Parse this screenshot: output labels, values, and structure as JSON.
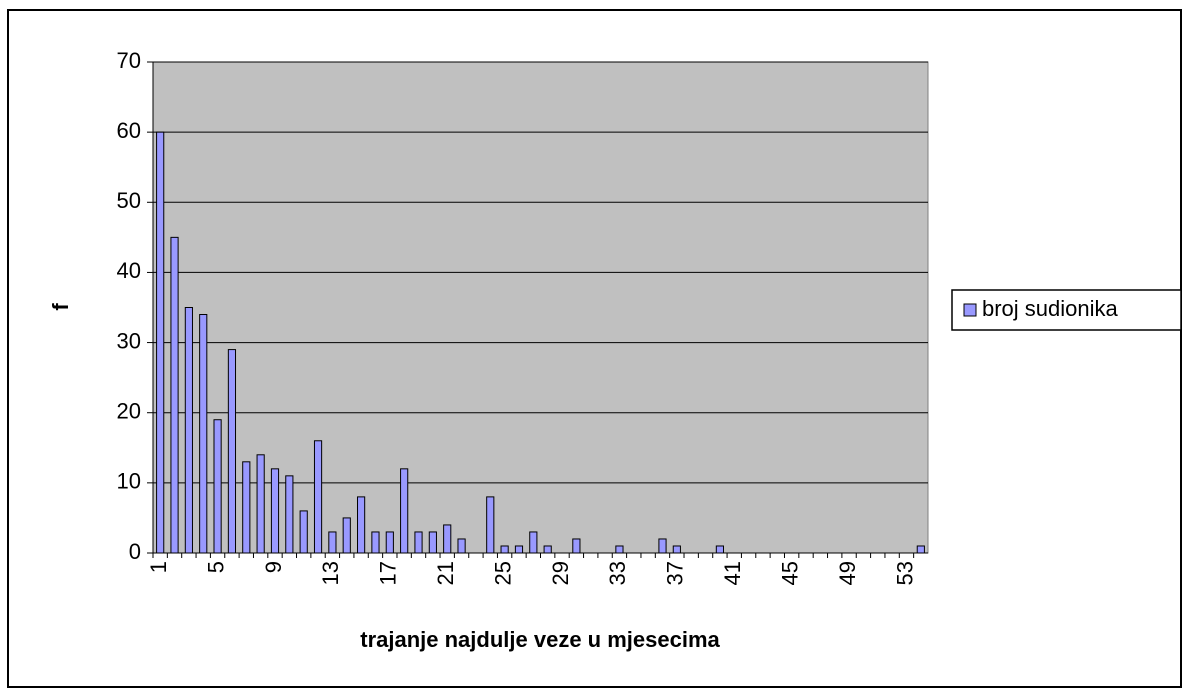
{
  "chart_data": {
    "type": "bar",
    "x_label": "trajanje najdulje veze u mjesecima",
    "y_label": "f",
    "categories": [
      1,
      null,
      null,
      null,
      5,
      null,
      null,
      null,
      9,
      null,
      null,
      null,
      13,
      null,
      null,
      null,
      17,
      null,
      null,
      null,
      21,
      null,
      null,
      null,
      25,
      null,
      null,
      null,
      29,
      null,
      null,
      null,
      33,
      null,
      null,
      null,
      37,
      null,
      null,
      null,
      41,
      null,
      null,
      null,
      45,
      null,
      null,
      null,
      49,
      null,
      null,
      null,
      53,
      null
    ],
    "series": [
      {
        "name": "broj sudionika",
        "color": "#9999ff",
        "values": [
          60,
          45,
          35,
          34,
          19,
          29,
          13,
          14,
          12,
          11,
          6,
          16,
          3,
          5,
          8,
          3,
          3,
          12,
          3,
          3,
          4,
          2,
          0,
          8,
          1,
          1,
          3,
          1,
          0,
          2,
          0,
          0,
          1,
          0,
          0,
          2,
          1,
          0,
          0,
          1,
          0,
          0,
          0,
          0,
          0,
          0,
          0,
          0,
          0,
          0,
          0,
          0,
          0,
          1
        ]
      }
    ],
    "ylim": [
      0,
      70
    ],
    "yticks": [
      0,
      10,
      20,
      30,
      40,
      50,
      60,
      70
    ],
    "grid": true,
    "legend": "right"
  }
}
